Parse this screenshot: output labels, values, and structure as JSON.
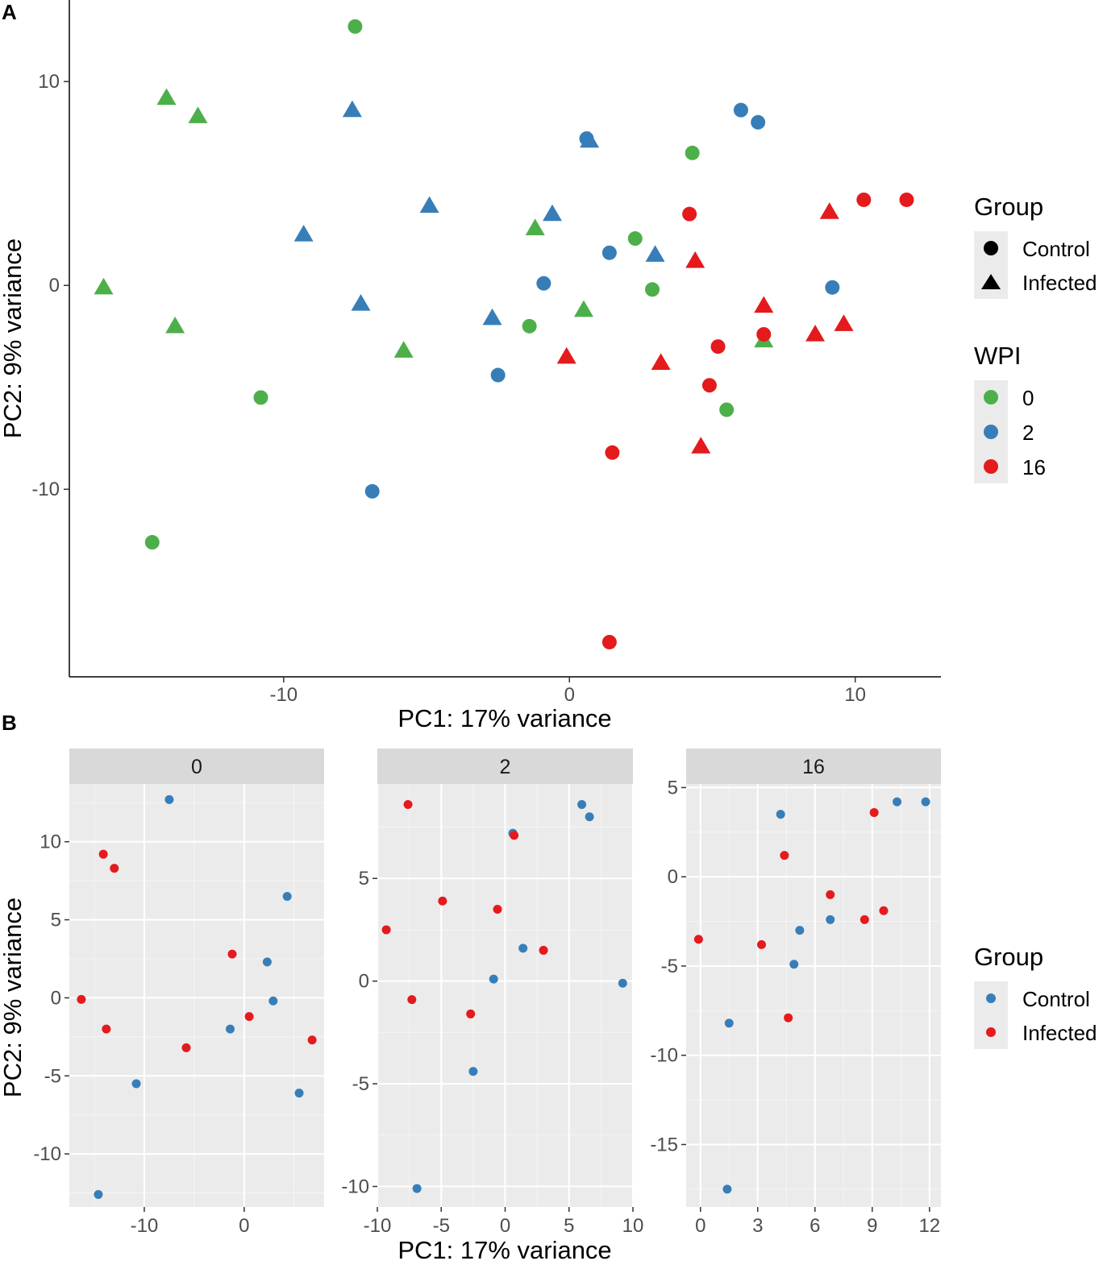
{
  "figure": {
    "panel_a_label": "A",
    "panel_b_label": "B"
  },
  "chart_data": [
    {
      "type": "scatter",
      "panel": "A",
      "xlabel": "PC1: 17% variance",
      "ylabel": "PC2: 9% variance",
      "xlim": [
        -17.5,
        13
      ],
      "ylim": [
        -19.2,
        14
      ],
      "xticks": [
        -10,
        0,
        10
      ],
      "yticks": [
        -10,
        0,
        10
      ],
      "grid": false,
      "legends": {
        "shape": {
          "title": "Group",
          "entries": [
            {
              "label": "Control",
              "shape": "circle"
            },
            {
              "label": "Infected",
              "shape": "triangle"
            }
          ]
        },
        "color": {
          "title": "WPI",
          "entries": [
            {
              "label": "0",
              "color": "#4daf4a"
            },
            {
              "label": "2",
              "color": "#377eb8"
            },
            {
              "label": "16",
              "color": "#e41a1c"
            }
          ]
        }
      },
      "points": [
        {
          "x": -7.5,
          "y": 12.7,
          "group": "Control",
          "wpi": "0"
        },
        {
          "x": -10.8,
          "y": -5.5,
          "group": "Control",
          "wpi": "0"
        },
        {
          "x": -14.6,
          "y": -12.6,
          "group": "Control",
          "wpi": "0"
        },
        {
          "x": 4.3,
          "y": 6.5,
          "group": "Control",
          "wpi": "0"
        },
        {
          "x": 2.3,
          "y": 2.3,
          "group": "Control",
          "wpi": "0"
        },
        {
          "x": 2.9,
          "y": -0.2,
          "group": "Control",
          "wpi": "0"
        },
        {
          "x": -1.4,
          "y": -2.0,
          "group": "Control",
          "wpi": "0"
        },
        {
          "x": 5.5,
          "y": -6.1,
          "group": "Control",
          "wpi": "0"
        },
        {
          "x": -14.1,
          "y": 9.2,
          "group": "Infected",
          "wpi": "0"
        },
        {
          "x": -13.0,
          "y": 8.3,
          "group": "Infected",
          "wpi": "0"
        },
        {
          "x": -16.3,
          "y": -0.1,
          "group": "Infected",
          "wpi": "0"
        },
        {
          "x": -13.8,
          "y": -2.0,
          "group": "Infected",
          "wpi": "0"
        },
        {
          "x": -5.8,
          "y": -3.2,
          "group": "Infected",
          "wpi": "0"
        },
        {
          "x": -1.2,
          "y": 2.8,
          "group": "Infected",
          "wpi": "0"
        },
        {
          "x": 0.5,
          "y": -1.2,
          "group": "Infected",
          "wpi": "0"
        },
        {
          "x": 6.8,
          "y": -2.7,
          "group": "Infected",
          "wpi": "0"
        },
        {
          "x": 0.6,
          "y": 7.2,
          "group": "Control",
          "wpi": "2"
        },
        {
          "x": 6.0,
          "y": 8.6,
          "group": "Control",
          "wpi": "2"
        },
        {
          "x": 6.6,
          "y": 8.0,
          "group": "Control",
          "wpi": "2"
        },
        {
          "x": 1.4,
          "y": 1.6,
          "group": "Control",
          "wpi": "2"
        },
        {
          "x": -0.9,
          "y": 0.1,
          "group": "Control",
          "wpi": "2"
        },
        {
          "x": 9.2,
          "y": -0.1,
          "group": "Control",
          "wpi": "2"
        },
        {
          "x": -2.5,
          "y": -4.4,
          "group": "Control",
          "wpi": "2"
        },
        {
          "x": -6.9,
          "y": -10.1,
          "group": "Control",
          "wpi": "2"
        },
        {
          "x": -7.6,
          "y": 8.6,
          "group": "Infected",
          "wpi": "2"
        },
        {
          "x": 0.7,
          "y": 7.1,
          "group": "Infected",
          "wpi": "2"
        },
        {
          "x": -4.9,
          "y": 3.9,
          "group": "Infected",
          "wpi": "2"
        },
        {
          "x": -0.6,
          "y": 3.5,
          "group": "Infected",
          "wpi": "2"
        },
        {
          "x": -9.3,
          "y": 2.5,
          "group": "Infected",
          "wpi": "2"
        },
        {
          "x": 3.0,
          "y": 1.5,
          "group": "Infected",
          "wpi": "2"
        },
        {
          "x": -7.3,
          "y": -0.9,
          "group": "Infected",
          "wpi": "2"
        },
        {
          "x": -2.7,
          "y": -1.6,
          "group": "Infected",
          "wpi": "2"
        },
        {
          "x": 10.3,
          "y": 4.2,
          "group": "Control",
          "wpi": "16"
        },
        {
          "x": 11.8,
          "y": 4.2,
          "group": "Control",
          "wpi": "16"
        },
        {
          "x": 4.2,
          "y": 3.5,
          "group": "Control",
          "wpi": "16"
        },
        {
          "x": 6.8,
          "y": -2.4,
          "group": "Control",
          "wpi": "16"
        },
        {
          "x": 5.2,
          "y": -3.0,
          "group": "Control",
          "wpi": "16"
        },
        {
          "x": 4.9,
          "y": -4.9,
          "group": "Control",
          "wpi": "16"
        },
        {
          "x": 1.5,
          "y": -8.2,
          "group": "Control",
          "wpi": "16"
        },
        {
          "x": 1.4,
          "y": -17.5,
          "group": "Control",
          "wpi": "16"
        },
        {
          "x": 9.1,
          "y": 3.6,
          "group": "Infected",
          "wpi": "16"
        },
        {
          "x": 4.4,
          "y": 1.2,
          "group": "Infected",
          "wpi": "16"
        },
        {
          "x": 6.8,
          "y": -1.0,
          "group": "Infected",
          "wpi": "16"
        },
        {
          "x": 8.6,
          "y": -2.4,
          "group": "Infected",
          "wpi": "16"
        },
        {
          "x": 9.6,
          "y": -1.9,
          "group": "Infected",
          "wpi": "16"
        },
        {
          "x": -0.1,
          "y": -3.5,
          "group": "Infected",
          "wpi": "16"
        },
        {
          "x": 3.2,
          "y": -3.8,
          "group": "Infected",
          "wpi": "16"
        },
        {
          "x": 4.6,
          "y": -7.9,
          "group": "Infected",
          "wpi": "16"
        }
      ]
    },
    {
      "type": "scatter",
      "panel": "B",
      "xlabel": "PC1: 17% variance",
      "ylabel": "PC2: 9% variance",
      "grid": true,
      "legend": {
        "title": "Group",
        "entries": [
          {
            "label": "Control",
            "color": "#377eb8"
          },
          {
            "label": "Infected",
            "color": "#e41a1c"
          }
        ]
      },
      "facets": [
        {
          "label": "0",
          "xlim": [
            -17.5,
            8
          ],
          "ylim": [
            -13.4,
            13.7
          ],
          "xticks": [
            -10,
            0
          ],
          "yticks": [
            -10,
            -5,
            0,
            5,
            10
          ],
          "xminor": [
            -15,
            -5,
            5
          ],
          "yminor": [
            -12.5,
            -7.5,
            -2.5,
            2.5,
            7.5,
            12.5
          ],
          "points": [
            {
              "x": -7.5,
              "y": 12.7,
              "group": "Control"
            },
            {
              "x": 4.3,
              "y": 6.5,
              "group": "Control"
            },
            {
              "x": 2.3,
              "y": 2.3,
              "group": "Control"
            },
            {
              "x": 2.9,
              "y": -0.2,
              "group": "Control"
            },
            {
              "x": -1.4,
              "y": -2.0,
              "group": "Control"
            },
            {
              "x": -10.8,
              "y": -5.5,
              "group": "Control"
            },
            {
              "x": 5.5,
              "y": -6.1,
              "group": "Control"
            },
            {
              "x": -14.6,
              "y": -12.6,
              "group": "Control"
            },
            {
              "x": -14.1,
              "y": 9.2,
              "group": "Infected"
            },
            {
              "x": -13.0,
              "y": 8.3,
              "group": "Infected"
            },
            {
              "x": -1.2,
              "y": 2.8,
              "group": "Infected"
            },
            {
              "x": -16.3,
              "y": -0.1,
              "group": "Infected"
            },
            {
              "x": 0.5,
              "y": -1.2,
              "group": "Infected"
            },
            {
              "x": -13.8,
              "y": -2.0,
              "group": "Infected"
            },
            {
              "x": -5.8,
              "y": -3.2,
              "group": "Infected"
            },
            {
              "x": 6.8,
              "y": -2.7,
              "group": "Infected"
            }
          ]
        },
        {
          "label": "2",
          "xlim": [
            -10,
            10
          ],
          "ylim": [
            -11.0,
            9.6
          ],
          "xticks": [
            -10,
            -5,
            0,
            5,
            10
          ],
          "yticks": [
            -10,
            -5,
            0,
            5
          ],
          "xminor": [
            -7.5,
            -2.5,
            2.5,
            7.5
          ],
          "yminor": [
            -7.5,
            -2.5,
            2.5,
            7.5
          ],
          "points": [
            {
              "x": 6.0,
              "y": 8.6,
              "group": "Control"
            },
            {
              "x": 6.6,
              "y": 8.0,
              "group": "Control"
            },
            {
              "x": 0.6,
              "y": 7.2,
              "group": "Control"
            },
            {
              "x": 1.4,
              "y": 1.6,
              "group": "Control"
            },
            {
              "x": -0.9,
              "y": 0.1,
              "group": "Control"
            },
            {
              "x": 9.2,
              "y": -0.1,
              "group": "Control"
            },
            {
              "x": -2.5,
              "y": -4.4,
              "group": "Control"
            },
            {
              "x": -6.9,
              "y": -10.1,
              "group": "Control"
            },
            {
              "x": -7.6,
              "y": 8.6,
              "group": "Infected"
            },
            {
              "x": 0.7,
              "y": 7.1,
              "group": "Infected"
            },
            {
              "x": -4.9,
              "y": 3.9,
              "group": "Infected"
            },
            {
              "x": -0.6,
              "y": 3.5,
              "group": "Infected"
            },
            {
              "x": -9.3,
              "y": 2.5,
              "group": "Infected"
            },
            {
              "x": 3.0,
              "y": 1.5,
              "group": "Infected"
            },
            {
              "x": -7.3,
              "y": -0.9,
              "group": "Infected"
            },
            {
              "x": -2.7,
              "y": -1.6,
              "group": "Infected"
            }
          ]
        },
        {
          "label": "16",
          "xlim": [
            -0.75,
            12.6
          ],
          "ylim": [
            -18.5,
            5.2
          ],
          "xticks": [
            0,
            3,
            6,
            9,
            12
          ],
          "yticks": [
            -15,
            -10,
            -5,
            0,
            5
          ],
          "xminor": [
            1.5,
            4.5,
            7.5,
            10.5
          ],
          "yminor": [
            -17.5,
            -12.5,
            -7.5,
            -2.5,
            2.5
          ],
          "points": [
            {
              "x": 10.3,
              "y": 4.2,
              "group": "Control"
            },
            {
              "x": 11.8,
              "y": 4.2,
              "group": "Control"
            },
            {
              "x": 4.2,
              "y": 3.5,
              "group": "Control"
            },
            {
              "x": 6.8,
              "y": -2.4,
              "group": "Control"
            },
            {
              "x": 5.2,
              "y": -3.0,
              "group": "Control"
            },
            {
              "x": 4.9,
              "y": -4.9,
              "group": "Control"
            },
            {
              "x": 1.5,
              "y": -8.2,
              "group": "Control"
            },
            {
              "x": 1.4,
              "y": -17.5,
              "group": "Control"
            },
            {
              "x": 9.1,
              "y": 3.6,
              "group": "Infected"
            },
            {
              "x": 4.4,
              "y": 1.2,
              "group": "Infected"
            },
            {
              "x": 6.8,
              "y": -1.0,
              "group": "Infected"
            },
            {
              "x": 8.6,
              "y": -2.4,
              "group": "Infected"
            },
            {
              "x": 9.6,
              "y": -1.9,
              "group": "Infected"
            },
            {
              "x": -0.1,
              "y": -3.5,
              "group": "Infected"
            },
            {
              "x": 3.2,
              "y": -3.8,
              "group": "Infected"
            },
            {
              "x": 4.6,
              "y": -7.9,
              "group": "Infected"
            }
          ]
        }
      ]
    }
  ]
}
